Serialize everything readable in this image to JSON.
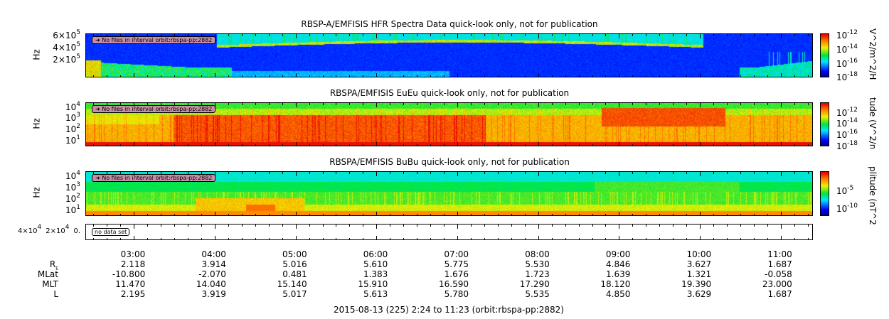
{
  "chart_data": {
    "type": "heatmap",
    "time_range": {
      "start": "2:24",
      "end": "11:23"
    },
    "x_tick_labels": [
      "03:00",
      "04:00",
      "05:00",
      "06:00",
      "07:00",
      "08:00",
      "09:00",
      "10:00",
      "11:00"
    ],
    "panels": [
      {
        "title": "RBSP-A/EMFISIS  HFR Spectra Data quick-look only, not for publication",
        "ylabel": "Hz",
        "yticks": [
          "6×10",
          "4×10",
          "2×10"
        ],
        "ytick_exp": "5",
        "note": "No files in interval orbit:rbspa-pp:2882",
        "zlabel": "V^2/m^2/Hz",
        "zticks": [
          "-12",
          "-14",
          "-16",
          "-18"
        ],
        "zrange": [
          1e-18,
          1e-12
        ]
      },
      {
        "title": "RBSPA/EMFISIS  EuEu quick-look only, not for publication",
        "ylabel": "Hz",
        "yticks": [
          "4",
          "3",
          "2",
          "1"
        ],
        "note": "No files in interval orbit:rbspa-pp:2882",
        "zlabel": "tude (V^2/m^",
        "zticks": [
          "-12",
          "-14",
          "-16",
          "-18"
        ],
        "zrange": [
          1e-18,
          1e-11
        ]
      },
      {
        "title": "RBSPA/EMFISIS  BuBu quick-look only, not for publication",
        "ylabel": "Hz",
        "yticks": [
          "4",
          "3",
          "2",
          "1"
        ],
        "note": "No files in interval orbit:rbspa-pp:2882",
        "zlabel": "plitude (nT^2",
        "zticks": [
          "-5",
          "-10"
        ],
        "zrange": [
          1e-12,
          0.1
        ]
      },
      {
        "yticks": [
          "4×10",
          "2×10",
          "0."
        ],
        "ytick_exp": "4",
        "note": "no data set"
      }
    ],
    "ephemeris": {
      "labels": [
        "R",
        "MLat",
        "MLT",
        "L"
      ],
      "re_sub": "E",
      "R": [
        "2.118",
        "3.914",
        "5.016",
        "5.610",
        "5.775",
        "5.530",
        "4.846",
        "3.627",
        "1.687"
      ],
      "MLat": [
        "-10.800",
        "-2.070",
        "0.481",
        "1.383",
        "1.676",
        "1.723",
        "1.639",
        "1.321",
        "-0.058"
      ],
      "MLT": [
        "11.470",
        "14.040",
        "15.140",
        "15.910",
        "16.590",
        "17.290",
        "18.120",
        "19.390",
        "23.000"
      ],
      "L": [
        "2.195",
        "3.919",
        "5.017",
        "5.613",
        "5.780",
        "5.535",
        "4.850",
        "3.629",
        "1.687"
      ]
    },
    "footer": "2015-08-13 (225) 2:24 to 11:23 (orbit:rbspa-pp:2882)"
  }
}
